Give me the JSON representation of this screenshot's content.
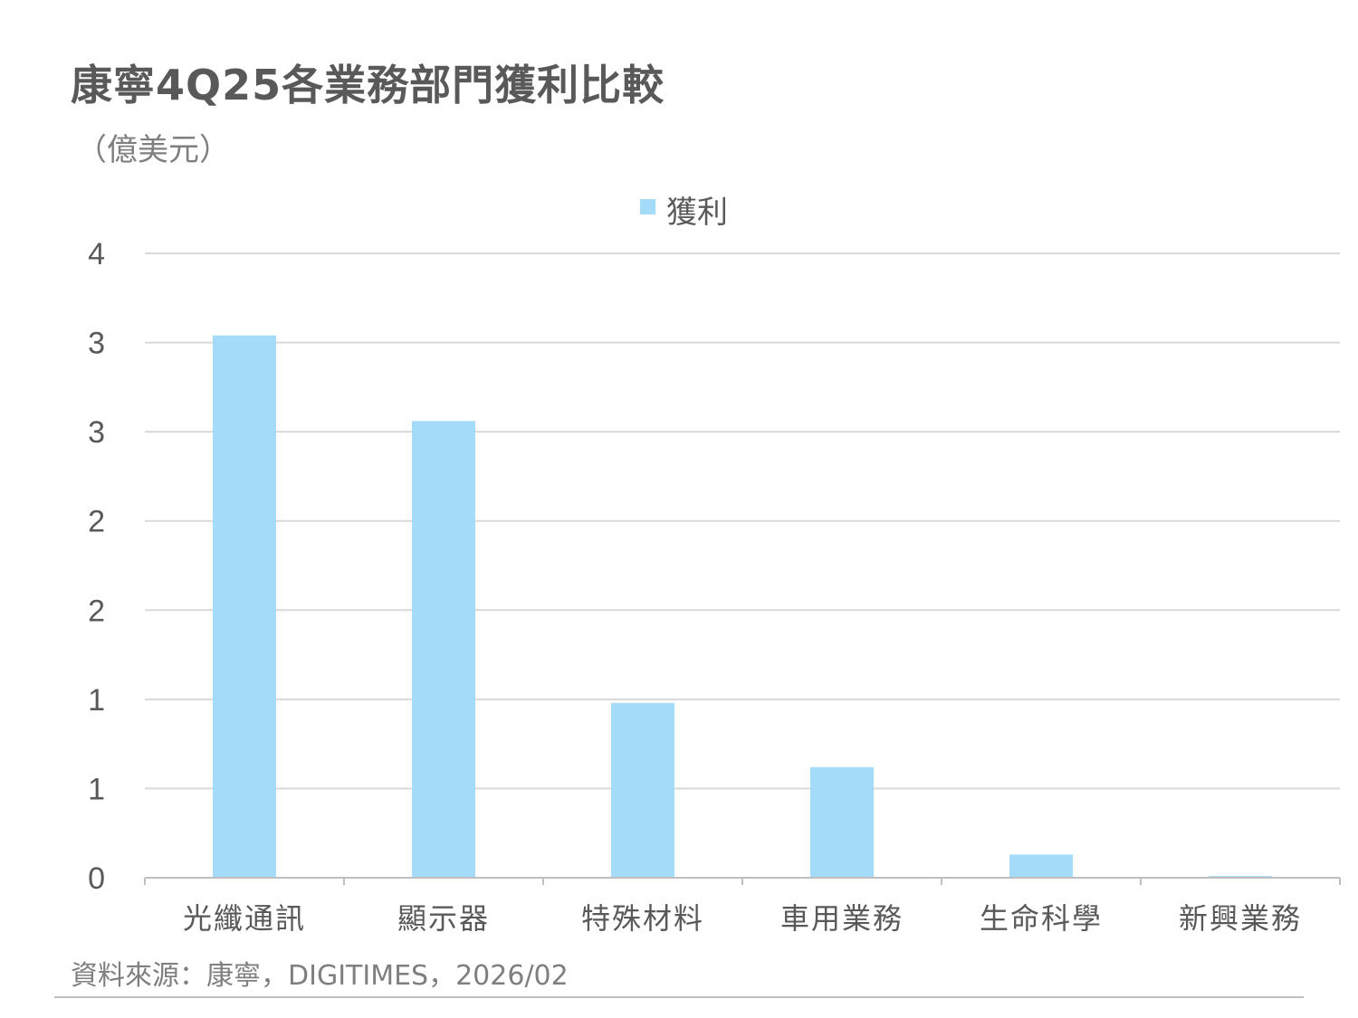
{
  "title": "康寧4Q25各業務部門獲利比較",
  "unit_label": "（億美元）",
  "source": "資料來源：康寧，DIGITIMES，2026/02",
  "colors": {
    "bar": "#a3dbf9",
    "grid": "#d9d9d9",
    "axis": "#bfbfbf",
    "tick_text": "#595959"
  },
  "chart_data": {
    "type": "bar",
    "categories": [
      "光纖通訊",
      "顯示器",
      "特殊材料",
      "車用業務",
      "生命科學",
      "新興業務"
    ],
    "series": [
      {
        "name": "獲利",
        "values": [
          3.04,
          2.56,
          0.98,
          0.62,
          0.13,
          0.01
        ]
      }
    ],
    "ylim": [
      0,
      3.5
    ],
    "y_ticks": [
      0,
      0.5,
      1.0,
      1.5,
      2.0,
      2.5,
      3.0,
      3.5
    ],
    "y_tick_labels": [
      "0",
      "1",
      "1",
      "2",
      "2",
      "3",
      "3",
      "4"
    ],
    "legend": "top-center",
    "grid": true,
    "xlabel": "",
    "ylabel": ""
  }
}
